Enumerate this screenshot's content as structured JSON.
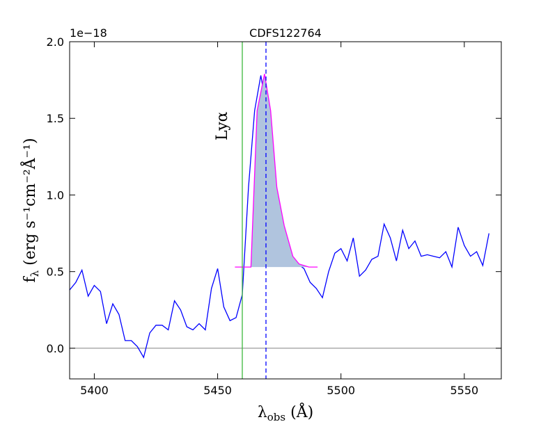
{
  "chart_data": {
    "type": "line",
    "title": "CDFS122764",
    "offset_text": "1e−18",
    "xlabel": {
      "main": "λ",
      "sub": "obs",
      "rest": " (Å)"
    },
    "ylabel": {
      "main": "f",
      "sub": "λ",
      "rest": " (erg s⁻¹cm⁻²Å⁻¹)"
    },
    "xlim": [
      5390,
      5565
    ],
    "ylim": [
      -0.2,
      2.0
    ],
    "xticks": [
      5400,
      5450,
      5500,
      5550
    ],
    "yticks": [
      {
        "value": 0,
        "label": "0.0"
      },
      0.5,
      {
        "value": 1,
        "label": "1.0"
      },
      1.5,
      {
        "value": 2,
        "label": "2.0"
      }
    ],
    "series": [
      {
        "color": "#0000ff",
        "x": [
          5390,
          5392.5,
          5395,
          5397.5,
          5400,
          5402.5,
          5405,
          5407.5,
          5410,
          5412.5,
          5415,
          5417.5,
          5420,
          5422.5,
          5425,
          5427.5,
          5430,
          5432.5,
          5435,
          5437.5,
          5440,
          5442.5,
          5445,
          5447.5,
          5450,
          5452.5,
          5455,
          5457.5,
          5460,
          5462.5,
          5465,
          5467.5,
          5470,
          5472.5,
          5475,
          5477.5,
          5480,
          5482.5,
          5485,
          5487.5,
          5490,
          5492.5,
          5495,
          5497.5,
          5500,
          5502.5,
          5505,
          5507.5,
          5510,
          5512.5,
          5515,
          5517.5,
          5520,
          5522.5,
          5525,
          5527.5,
          5530,
          5532.5,
          5535,
          5537.5,
          5540,
          5542.5,
          5545,
          5547.5,
          5550,
          5552.5,
          5555,
          5557.5,
          5560
        ],
        "values": [
          0.38,
          0.43,
          0.51,
          0.34,
          0.41,
          0.37,
          0.16,
          0.29,
          0.22,
          0.05,
          0.05,
          0.01,
          -0.06,
          0.1,
          0.15,
          0.15,
          0.12,
          0.31,
          0.25,
          0.14,
          0.12,
          0.16,
          0.12,
          0.39,
          0.52,
          0.27,
          0.18,
          0.2,
          0.35,
          1.05,
          1.55,
          1.78,
          1.55,
          1.1,
          0.85,
          0.68,
          0.58,
          0.55,
          0.52,
          0.43,
          0.39,
          0.33,
          0.5,
          0.62,
          0.65,
          0.57,
          0.72,
          0.47,
          0.51,
          0.58,
          0.6,
          0.81,
          0.72,
          0.57,
          0.77,
          0.65,
          0.7,
          0.6,
          0.61,
          0.6,
          0.59,
          0.63,
          0.53,
          0.79,
          0.67,
          0.6,
          0.63,
          0.54,
          0.75
        ]
      },
      {
        "color": "#ff00ff",
        "fill": "#b0c4de",
        "x": [
          5457,
          5463.5,
          5466,
          5469,
          5471.5,
          5474,
          5477,
          5480.5,
          5483,
          5487,
          5490.5
        ],
        "values": [
          0.53,
          0.53,
          1.55,
          1.79,
          1.55,
          1.05,
          0.8,
          0.6,
          0.55,
          0.53,
          0.53
        ]
      }
    ],
    "vlines": [
      {
        "x": 5460,
        "color": "#3cb83c",
        "style": "solid",
        "label": "Lyα"
      },
      {
        "x": 5469.6,
        "color": "#0000ff",
        "style": "dashed"
      }
    ],
    "hlines": [
      {
        "y": 0,
        "color": "#808080"
      }
    ]
  }
}
